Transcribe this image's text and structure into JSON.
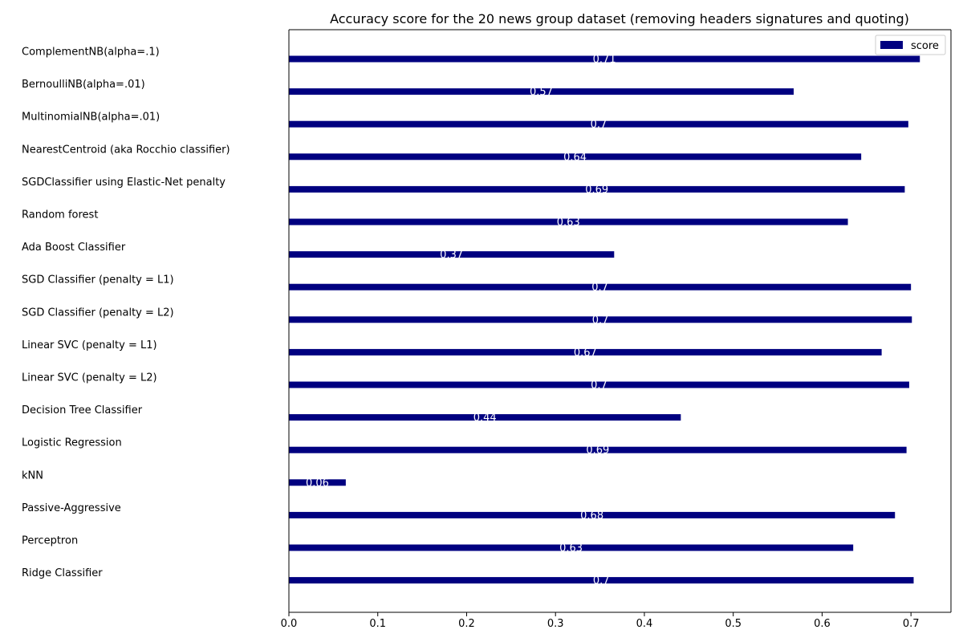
{
  "chart_data": {
    "type": "bar",
    "orientation": "horizontal",
    "title": "Accuracy score for the 20 news group dataset (removing headers signatures and quoting)",
    "xlabel": "",
    "ylabel": "",
    "xlim": [
      0.0,
      0.745
    ],
    "xticks": [
      "0.0",
      "0.1",
      "0.2",
      "0.3",
      "0.4",
      "0.5",
      "0.6",
      "0.7"
    ],
    "grid": false,
    "legend_position": "top-right",
    "categories": [
      "ComplementNB(alpha=.1)",
      "BernoulliNB(alpha=.01)",
      "MultinomialNB(alpha=.01)",
      "NearestCentroid (aka Rocchio classifier)",
      "SGDClassifier using Elastic-Net penalty",
      "Random forest",
      "Ada Boost Classifier",
      "SGD Classifier (penalty = L1)",
      "SGD Classifier (penalty = L2)",
      "Linear SVC (penalty = L1)",
      "Linear SVC (penalty = L2)",
      "Decision Tree Classifier",
      "Logistic Regression",
      "kNN",
      "Passive-Aggressive",
      "Perceptron",
      "Ridge Classifier"
    ],
    "series": [
      {
        "name": "score",
        "color": "#000080",
        "values": [
          0.71,
          0.568,
          0.697,
          0.644,
          0.693,
          0.629,
          0.366,
          0.7,
          0.701,
          0.667,
          0.698,
          0.441,
          0.695,
          0.064,
          0.682,
          0.635,
          0.703
        ],
        "labels": [
          "0.71",
          "0.57",
          "0.7",
          "0.64",
          "0.69",
          "0.63",
          "0.37",
          "0.7",
          "0.7",
          "0.67",
          "0.7",
          "0.44",
          "0.69",
          "0.06",
          "0.68",
          "0.63",
          "0.7"
        ]
      }
    ]
  }
}
